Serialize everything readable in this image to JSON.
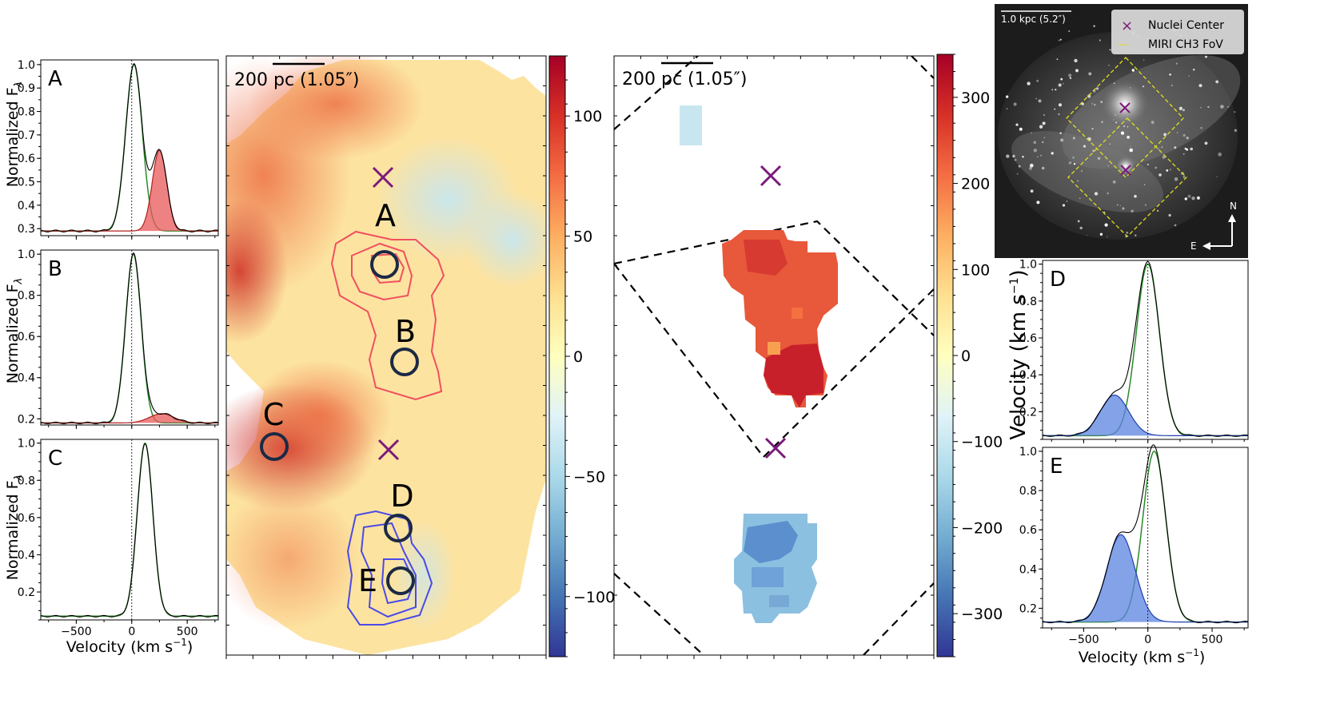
{
  "figure": {
    "ylabel_spec": "Normalized F",
    "ylabel_sub": "λ",
    "xlabel_spec": "Velocity (km s",
    "xlabel_sup": "−1",
    "xlabel_close": ")",
    "cbar_label": "Velocity (km s",
    "cbar_label_sup": "−1",
    "cbar_label_close": ")"
  },
  "colors": {
    "red_fill": "#e8585a",
    "blue_fill": "#5b83e0",
    "green_line": "#2a8a2a",
    "marker": "#7b1a7b",
    "circle": "#1b2a44",
    "contour_red": "#f05060",
    "contour_blue": "#4a4ae8",
    "fov": "#e0e020"
  },
  "chart_data": [
    {
      "type": "line",
      "id": "spectrum-A",
      "panel_label": "A",
      "xlim": [
        -820,
        780
      ],
      "ylim": [
        0.27,
        1.02
      ],
      "xticks": [
        -500,
        0,
        500
      ],
      "show_xticklabels": false,
      "yticks": [
        0.3,
        0.4,
        0.5,
        0.6,
        0.7,
        0.8,
        0.9,
        1.0
      ],
      "ytick_labels": [
        "0.3",
        "0.4",
        "0.5",
        "0.6",
        "0.7",
        "0.8",
        "0.9",
        "1.0"
      ],
      "baseline": 0.29,
      "components": [
        {
          "name": "systemic",
          "center": 20,
          "sigma": 75,
          "amp": 1.0,
          "color": "green"
        },
        {
          "name": "outflow",
          "center": 250,
          "sigma": 65,
          "amp": 0.635,
          "color": "red",
          "filled": true
        }
      ]
    },
    {
      "type": "line",
      "id": "spectrum-B",
      "panel_label": "B",
      "xlim": [
        -820,
        780
      ],
      "ylim": [
        0.17,
        1.02
      ],
      "xticks": [
        -500,
        0,
        500
      ],
      "show_xticklabels": false,
      "yticks": [
        0.2,
        0.4,
        0.6,
        0.8,
        1.0
      ],
      "ytick_labels": [
        "0.2",
        "0.4",
        "0.6",
        "0.8",
        "1.0"
      ],
      "baseline": 0.18,
      "components": [
        {
          "name": "systemic",
          "center": 15,
          "sigma": 70,
          "amp": 1.0,
          "color": "green"
        },
        {
          "name": "outflow",
          "center": 270,
          "sigma": 110,
          "amp": 0.225,
          "color": "red",
          "filled": true
        }
      ]
    },
    {
      "type": "line",
      "id": "spectrum-C",
      "panel_label": "C",
      "xlim": [
        -820,
        780
      ],
      "ylim": [
        0.05,
        1.02
      ],
      "xticks": [
        -500,
        0,
        500
      ],
      "show_xticklabels": true,
      "xtick_labels": [
        "−500",
        "0",
        "500"
      ],
      "yticks": [
        0.2,
        0.4,
        0.6,
        0.8,
        1.0
      ],
      "ytick_labels": [
        "0.2",
        "0.4",
        "0.6",
        "0.8",
        "1.0"
      ],
      "baseline": 0.07,
      "components": [
        {
          "name": "systemic",
          "center": 120,
          "sigma": 70,
          "amp": 1.0,
          "color": "green"
        }
      ]
    },
    {
      "type": "line",
      "id": "spectrum-D",
      "panel_label": "D",
      "xlim": [
        -820,
        780
      ],
      "ylim": [
        0.05,
        1.02
      ],
      "xticks": [
        -500,
        0,
        500
      ],
      "show_xticklabels": false,
      "yticks": [
        0.2,
        0.4,
        0.6,
        0.8,
        1.0
      ],
      "ytick_labels": [
        "0.2",
        "0.4",
        "0.6",
        "0.8",
        "1.0"
      ],
      "baseline": 0.07,
      "components": [
        {
          "name": "systemic",
          "center": 0,
          "sigma": 90,
          "amp": 1.0,
          "color": "green"
        },
        {
          "name": "outflow",
          "center": -260,
          "sigma": 110,
          "amp": 0.29,
          "color": "blue",
          "filled": true
        }
      ]
    },
    {
      "type": "line",
      "id": "spectrum-E",
      "panel_label": "E",
      "xlim": [
        -820,
        780
      ],
      "ylim": [
        0.1,
        1.02
      ],
      "xticks": [
        -500,
        0,
        500
      ],
      "show_xticklabels": true,
      "xtick_labels": [
        "−500",
        "0",
        "500"
      ],
      "yticks": [
        0.2,
        0.4,
        0.6,
        0.8,
        1.0
      ],
      "ytick_labels": [
        "0.2",
        "0.4",
        "0.6",
        "0.8",
        "1.0"
      ],
      "baseline": 0.13,
      "components": [
        {
          "name": "systemic",
          "center": 50,
          "sigma": 90,
          "amp": 1.0,
          "color": "green"
        },
        {
          "name": "outflow",
          "center": -210,
          "sigma": 110,
          "amp": 0.575,
          "color": "blue",
          "filled": true
        }
      ]
    },
    {
      "type": "heatmap",
      "id": "velocity-map-1",
      "scale_bar": "200 pc (1.05″)",
      "colorbar": {
        "range": [
          -125,
          125
        ],
        "ticks": [
          100,
          50,
          0,
          -50,
          -100
        ],
        "tick_labels": [
          "100",
          "50",
          "0",
          "−50",
          "−100"
        ],
        "cmap": "RdYlBu_r"
      },
      "regions": [
        "A",
        "B",
        "C",
        "D",
        "E"
      ]
    },
    {
      "type": "heatmap",
      "id": "velocity-map-2",
      "scale_bar": "200 pc (1.05″)",
      "colorbar": {
        "range": [
          -350,
          350
        ],
        "ticks": [
          300,
          200,
          100,
          0,
          -100,
          -200,
          -300
        ],
        "tick_labels": [
          "300",
          "200",
          "100",
          "0",
          "−100",
          "−200",
          "−300"
        ],
        "cmap": "RdYlBu_r"
      }
    }
  ],
  "inset": {
    "scale_bar": "1.0 kpc (5.2″)",
    "legend": [
      {
        "label": "Nuclei Center",
        "symbol": "×",
        "color": "#7b1a7b"
      },
      {
        "label": "MIRI CH3 FoV",
        "symbol": "—",
        "color": "#e0e020"
      }
    ],
    "compass_north": "N",
    "compass_east": "E"
  }
}
